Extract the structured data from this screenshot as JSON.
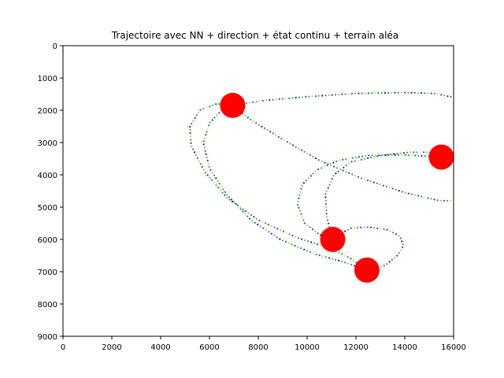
{
  "chart_data": {
    "type": "scatter",
    "title": "Trajectoire avec NN + direction + état continu + terrain aléa",
    "xlabel": "",
    "ylabel": "",
    "xlim": [
      0,
      16000
    ],
    "ylim": [
      9000,
      0
    ],
    "y_inverted": true,
    "grid": false,
    "legend": "none",
    "x_ticks": [
      0,
      2000,
      4000,
      6000,
      8000,
      10000,
      12000,
      14000,
      16000
    ],
    "y_ticks": [
      0,
      1000,
      2000,
      3000,
      4000,
      5000,
      6000,
      7000,
      8000,
      9000
    ],
    "targets": {
      "color": "#ff0000",
      "points": [
        {
          "x": 6950,
          "y": 1850
        },
        {
          "x": 15500,
          "y": 3450
        },
        {
          "x": 11050,
          "y": 6000
        },
        {
          "x": 12450,
          "y": 6950
        }
      ]
    },
    "colormap": "viridis",
    "trajectories": [
      {
        "points": [
          [
            12450,
            6950
          ],
          [
            11800,
            6600
          ],
          [
            11050,
            6300
          ],
          [
            9600,
            5950
          ],
          [
            8000,
            5400
          ],
          [
            6700,
            4700
          ],
          [
            5800,
            3900
          ],
          [
            5250,
            3100
          ],
          [
            5200,
            2500
          ],
          [
            5600,
            2000
          ],
          [
            6300,
            1800
          ],
          [
            6950,
            1850
          ],
          [
            7700,
            2300
          ],
          [
            9000,
            2900
          ],
          [
            10500,
            3550
          ],
          [
            12200,
            4100
          ],
          [
            14000,
            4550
          ],
          [
            15400,
            4800
          ],
          [
            16000,
            4800
          ]
        ]
      },
      {
        "points": [
          [
            11050,
            6000
          ],
          [
            10800,
            5300
          ],
          [
            10750,
            4600
          ],
          [
            11100,
            4000
          ],
          [
            11800,
            3600
          ],
          [
            13000,
            3400
          ],
          [
            14200,
            3300
          ],
          [
            15000,
            3300
          ],
          [
            15500,
            3450
          ]
        ]
      },
      {
        "points": [
          [
            12500,
            6950
          ],
          [
            13200,
            6800
          ],
          [
            13700,
            6500
          ],
          [
            13950,
            6200
          ],
          [
            13800,
            5900
          ],
          [
            13300,
            5700
          ],
          [
            12500,
            5620
          ],
          [
            11800,
            5650
          ],
          [
            11050,
            5950
          ],
          [
            10500,
            5850
          ],
          [
            9900,
            5500
          ],
          [
            9600,
            4900
          ],
          [
            9800,
            4300
          ],
          [
            10400,
            3850
          ],
          [
            11300,
            3550
          ],
          [
            12500,
            3400
          ],
          [
            14000,
            3380
          ],
          [
            15500,
            3450
          ]
        ]
      },
      {
        "points": [
          [
            12450,
            6950
          ],
          [
            11500,
            6700
          ],
          [
            10300,
            6450
          ],
          [
            8900,
            6000
          ],
          [
            7700,
            5400
          ],
          [
            6700,
            4600
          ],
          [
            6000,
            3800
          ],
          [
            5750,
            3000
          ],
          [
            6000,
            2400
          ],
          [
            6500,
            2000
          ],
          [
            6950,
            1850
          ],
          [
            8200,
            1700
          ],
          [
            10000,
            1580
          ],
          [
            12000,
            1480
          ],
          [
            14000,
            1450
          ],
          [
            15200,
            1480
          ],
          [
            16000,
            1600
          ]
        ]
      }
    ]
  }
}
